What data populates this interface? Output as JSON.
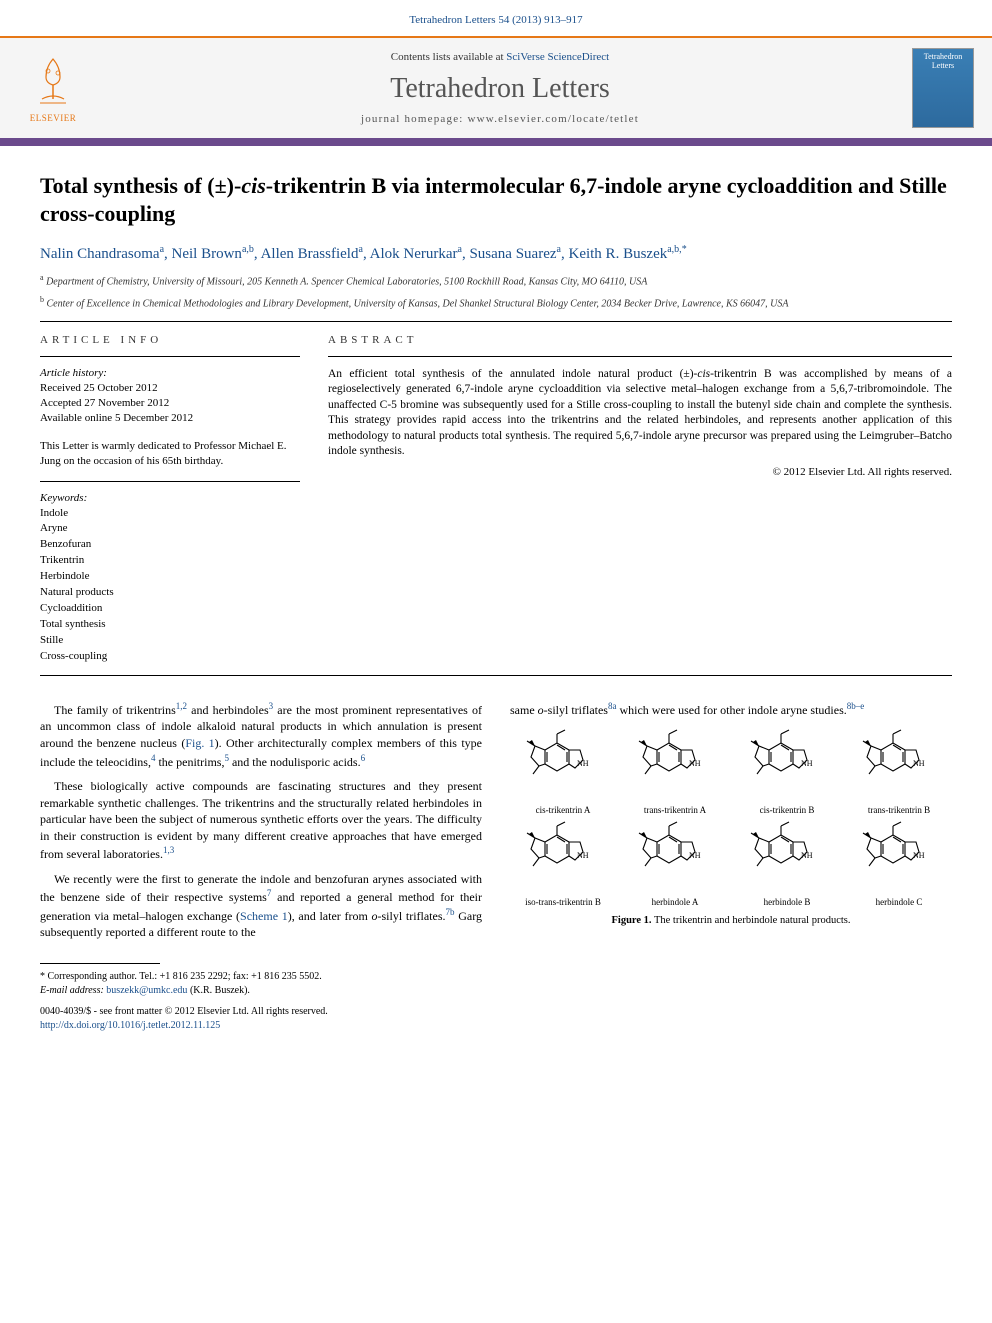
{
  "citation": "Tetrahedron Letters 54 (2013) 913–917",
  "header": {
    "contents_prefix": "Contents lists available at ",
    "contents_link": "SciVerse ScienceDirect",
    "journal": "Tetrahedron Letters",
    "homepage_prefix": "journal homepage: ",
    "homepage_url": "www.elsevier.com/locate/tetlet",
    "publisher": "ELSEVIER",
    "cover_title": "Tetrahedron Letters"
  },
  "title_parts": {
    "p1": "Total synthesis of (±)-",
    "p2": "cis",
    "p3": "-trikentrin B via intermolecular 6,7-indole aryne cycloaddition and Stille cross-coupling"
  },
  "authors": [
    {
      "name": "Nalin Chandrasoma",
      "aff": "a"
    },
    {
      "name": "Neil Brown",
      "aff": "a,b"
    },
    {
      "name": "Allen Brassfield",
      "aff": "a"
    },
    {
      "name": "Alok Nerurkar",
      "aff": "a"
    },
    {
      "name": "Susana Suarez",
      "aff": "a"
    },
    {
      "name": "Keith R. Buszek",
      "aff": "a,b,",
      "star": true
    }
  ],
  "affiliations": [
    {
      "sup": "a",
      "text": "Department of Chemistry, University of Missouri, 205 Kenneth A. Spencer Chemical Laboratories, 5100 Rockhill Road, Kansas City, MO 64110, USA"
    },
    {
      "sup": "b",
      "text": "Center of Excellence in Chemical Methodologies and Library Development, University of Kansas, Del Shankel Structural Biology Center, 2034 Becker Drive, Lawrence, KS 66047, USA"
    }
  ],
  "info": {
    "label": "ARTICLE INFO",
    "history_label": "Article history:",
    "history": [
      "Received 25 October 2012",
      "Accepted 27 November 2012",
      "Available online 5 December 2012"
    ],
    "dedication": "This Letter is warmly dedicated to Professor Michael E. Jung on the occasion of his 65th birthday.",
    "keywords_label": "Keywords:",
    "keywords": [
      "Indole",
      "Aryne",
      "Benzofuran",
      "Trikentrin",
      "Herbindole",
      "Natural products",
      "Cycloaddition",
      "Total synthesis",
      "Stille",
      "Cross-coupling"
    ]
  },
  "abstract": {
    "label": "ABSTRACT",
    "text_parts": {
      "p1": "An efficient total synthesis of the annulated indole natural product (±)-",
      "p2": "cis",
      "p3": "-trikentrin B was accomplished by means of a regioselectively generated 6,7-indole aryne cycloaddition via selective metal–halogen exchange from a 5,6,7-tribromoindole. The unaffected C-5 bromine was subsequently used for a Stille cross-coupling to install the butenyl side chain and complete the synthesis. This strategy provides rapid access into the trikentrins and the related herbindoles, and represents another application of this methodology to natural products total synthesis. The required 5,6,7-indole aryne precursor was prepared using the Leimgruber–Batcho indole synthesis."
    },
    "copyright": "© 2012 Elsevier Ltd. All rights reserved."
  },
  "body": {
    "left": {
      "para1": {
        "t1": "The family of trikentrins",
        "s1": "1,2",
        "t2": " and herbindoles",
        "s2": "3",
        "t3": " are the most prominent representatives of an uncommon class of indole alkaloid natural products in which annulation is present around the benzene nucleus (",
        "fig": "Fig. 1",
        "t4": "). Other architecturally complex members of this type include the teleocidins,",
        "s3": "4",
        "t5": " the penitrims,",
        "s4": "5",
        "t6": " and the nodulisporic acids.",
        "s5": "6"
      },
      "para2": {
        "t1": "These biologically active compounds are fascinating structures and they present remarkable synthetic challenges. The trikentrins and the structurally related herbindoles in particular have been the subject of numerous synthetic efforts over the years. The difficulty in their construction is evident by many different creative approaches that have emerged from several laboratories.",
        "s1": "1,3"
      },
      "para3": {
        "t1": "We recently were the first to generate the indole and benzofuran arynes associated with the benzene side of their respective systems",
        "s1": "7",
        "t2": " and reported a general method for their generation via metal–halogen exchange (",
        "scheme": "Scheme 1",
        "t3": "), and later from ",
        "ital1": "o",
        "t4": "-silyl triflates.",
        "s2": "7b",
        "t5": " Garg subsequently reported a different route to the"
      }
    },
    "right": {
      "para1": {
        "t1": "same ",
        "ital1": "o",
        "t2": "-silyl triflates",
        "s1": "8a",
        "t3": " which were used for other indole aryne studies.",
        "s2": "8b–e"
      }
    }
  },
  "figure": {
    "molecules_row1": [
      "cis-trikentrin A",
      "trans-trikentrin A",
      "cis-trikentrin B",
      "trans-trikentrin B"
    ],
    "molecules_row2": [
      "iso-trans-trikentrin B",
      "herbindole A",
      "herbindole B",
      "herbindole C"
    ],
    "caption_label": "Figure 1.",
    "caption_text": " The trikentrin and herbindole natural products."
  },
  "footnote": {
    "corr_label": "* Corresponding author. ",
    "tel": "Tel.: +1 816 235 2292; fax: +1 816 235 5502.",
    "email_label": "E-mail address:",
    "email": "buszekk@umkc.edu",
    "email_name": " (K.R. Buszek)."
  },
  "doi": {
    "line1": "0040-4039/$ - see front matter © 2012 Elsevier Ltd. All rights reserved.",
    "prefix": "http://dx.doi.org/",
    "link": "10.1016/j.tetlet.2012.11.125"
  },
  "colors": {
    "link": "#1a4f8b",
    "orange": "#e67817",
    "purple": "#6b4a8c",
    "cover": "#3a7fb5"
  }
}
